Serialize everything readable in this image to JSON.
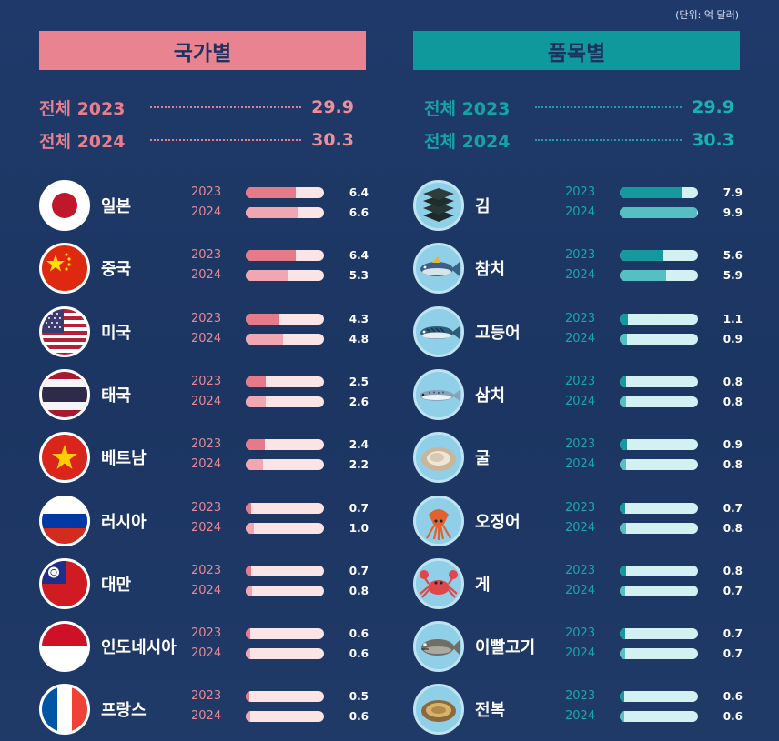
{
  "unit_label": "(단위: 억 달러)",
  "headers": {
    "country": "국가별",
    "item": "품목별"
  },
  "totals": {
    "country": [
      {
        "label": "전체 2023",
        "value": "29.9"
      },
      {
        "label": "전체 2024",
        "value": "30.3"
      }
    ],
    "item": [
      {
        "label": "전체 2023",
        "value": "29.9"
      },
      {
        "label": "전체 2024",
        "value": "30.3"
      }
    ]
  },
  "year_labels": [
    "2023",
    "2024"
  ],
  "colors": {
    "country_header": "#e8838f",
    "item_header": "#10999d",
    "country_bar_2023": "#e57a88",
    "country_bar_2024": "#f0a7b2",
    "item_bar_2023": "#15999c",
    "item_bar_2024": "#55bfc3",
    "background": "#1f3a6a"
  },
  "chart_data": [
    {
      "type": "bar",
      "title": "국가별",
      "categories": [
        "일본",
        "중국",
        "미국",
        "태국",
        "베트남",
        "러시아",
        "대만",
        "인도네시아",
        "프랑스"
      ],
      "icons": [
        "japan-flag-icon",
        "china-flag-icon",
        "usa-flag-icon",
        "thailand-flag-icon",
        "vietnam-flag-icon",
        "russia-flag-icon",
        "taiwan-flag-icon",
        "indonesia-flag-icon",
        "france-flag-icon"
      ],
      "series": [
        {
          "name": "2023",
          "values": [
            6.4,
            6.4,
            4.3,
            2.5,
            2.4,
            0.7,
            0.7,
            0.6,
            0.5
          ]
        },
        {
          "name": "2024",
          "values": [
            6.6,
            5.3,
            4.8,
            2.6,
            2.2,
            1.0,
            0.8,
            0.6,
            0.6
          ]
        }
      ],
      "xlim": [
        0,
        10
      ]
    },
    {
      "type": "bar",
      "title": "품목별",
      "categories": [
        "김",
        "참치",
        "고등어",
        "삼치",
        "굴",
        "오징어",
        "게",
        "이빨고기",
        "전복"
      ],
      "icons": [
        "seaweed-icon",
        "tuna-icon",
        "mackerel-icon",
        "spanish-mackerel-icon",
        "oyster-icon",
        "squid-icon",
        "crab-icon",
        "toothfish-icon",
        "abalone-icon"
      ],
      "series": [
        {
          "name": "2023",
          "values": [
            7.9,
            5.6,
            1.1,
            0.8,
            0.9,
            0.7,
            0.8,
            0.7,
            0.6
          ]
        },
        {
          "name": "2024",
          "values": [
            9.9,
            5.9,
            0.9,
            0.8,
            0.8,
            0.8,
            0.7,
            0.7,
            0.6
          ]
        }
      ],
      "xlim": [
        0,
        10
      ]
    }
  ]
}
